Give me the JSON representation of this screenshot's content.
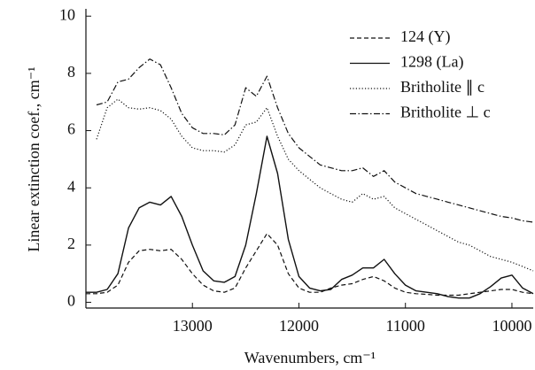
{
  "chart_data": {
    "type": "line",
    "xlabel": "Wavenumbers, cm⁻¹",
    "ylabel": "Linear extinction coef., cm⁻¹",
    "x": [
      14000,
      13900,
      13800,
      13700,
      13600,
      13500,
      13400,
      13300,
      13200,
      13100,
      13000,
      12900,
      12800,
      12700,
      12600,
      12500,
      12400,
      12300,
      12200,
      12100,
      12000,
      11900,
      11800,
      11700,
      11600,
      11500,
      11400,
      11300,
      11200,
      11100,
      11000,
      10900,
      10800,
      10700,
      10600,
      10500,
      10400,
      10300,
      10200,
      10100,
      10000,
      9900,
      9800
    ],
    "series": [
      {
        "name": "124 (Y)",
        "color": "#111111",
        "style": "dashed",
        "values": [
          0.3,
          0.3,
          0.35,
          0.6,
          1.4,
          1.8,
          1.85,
          1.8,
          1.85,
          1.5,
          1.0,
          0.6,
          0.4,
          0.35,
          0.5,
          1.2,
          1.8,
          2.4,
          2.0,
          1.0,
          0.5,
          0.35,
          0.35,
          0.5,
          0.6,
          0.65,
          0.8,
          0.9,
          0.75,
          0.5,
          0.35,
          0.3,
          0.28,
          0.25,
          0.25,
          0.25,
          0.3,
          0.35,
          0.4,
          0.45,
          0.45,
          0.35,
          0.3
        ]
      },
      {
        "name": "1298 (La)",
        "color": "#111111",
        "style": "solid",
        "values": [
          0.35,
          0.35,
          0.45,
          1.0,
          2.6,
          3.3,
          3.5,
          3.4,
          3.7,
          3.0,
          2.0,
          1.1,
          0.75,
          0.7,
          0.9,
          2.0,
          3.8,
          5.8,
          4.5,
          2.2,
          0.9,
          0.5,
          0.4,
          0.45,
          0.8,
          0.95,
          1.2,
          1.2,
          1.5,
          1.0,
          0.6,
          0.4,
          0.35,
          0.3,
          0.2,
          0.15,
          0.15,
          0.3,
          0.55,
          0.85,
          0.95,
          0.5,
          0.3
        ]
      },
      {
        "name": "Britholite ∥ c",
        "color": "#111111",
        "style": "dotted",
        "values": [
          null,
          5.7,
          6.8,
          7.1,
          6.8,
          6.75,
          6.8,
          6.7,
          6.4,
          5.8,
          5.4,
          5.3,
          5.3,
          5.25,
          5.5,
          6.2,
          6.3,
          6.8,
          5.8,
          5.0,
          4.6,
          4.3,
          4.0,
          3.8,
          3.6,
          3.5,
          3.8,
          3.6,
          3.7,
          3.3,
          3.1,
          2.9,
          2.7,
          2.5,
          2.3,
          2.1,
          2.0,
          1.8,
          1.6,
          1.5,
          1.4,
          1.25,
          1.1
        ]
      },
      {
        "name": "Britholite ⊥ c",
        "color": "#111111",
        "style": "dashdot",
        "values": [
          null,
          6.9,
          7.0,
          7.7,
          7.8,
          8.2,
          8.5,
          8.3,
          7.5,
          6.6,
          6.1,
          5.9,
          5.9,
          5.85,
          6.2,
          7.5,
          7.2,
          7.9,
          6.8,
          5.9,
          5.4,
          5.1,
          4.8,
          4.7,
          4.6,
          4.6,
          4.7,
          4.4,
          4.6,
          4.2,
          4.0,
          3.8,
          3.7,
          3.6,
          3.5,
          3.4,
          3.3,
          3.2,
          3.1,
          3.0,
          2.95,
          2.85,
          2.8
        ]
      }
    ],
    "xlim": [
      14000,
      9800
    ],
    "xticks": [
      13000,
      12000,
      11000,
      10000
    ],
    "ylim": [
      -0.2,
      10.1
    ],
    "yticks": [
      0,
      2,
      4,
      6,
      8,
      10
    ],
    "grid": false,
    "legend": "upper right"
  }
}
